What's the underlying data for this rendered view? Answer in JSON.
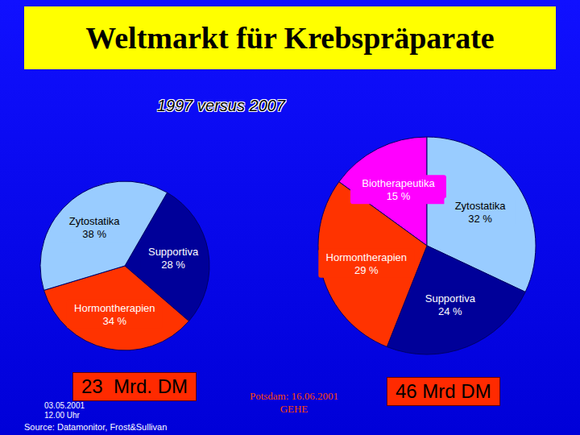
{
  "title": "Weltmarkt für Krebspräparate",
  "subtitle": "1997 versus 2007",
  "chart_data": [
    {
      "type": "pie",
      "categories": [
        "Supportiva",
        "Hormontherapien",
        "Zytostatika"
      ],
      "values": [
        28,
        34,
        38
      ],
      "value_labels": [
        "28 %",
        "34 %",
        "38 %"
      ],
      "colors": [
        "#000099",
        "#ff3300",
        "#99ccff"
      ],
      "data_labels": true,
      "annotations": [
        "23  Mrd. DM"
      ]
    },
    {
      "type": "pie",
      "categories": [
        "Biotherapeutika",
        "Zytostatika",
        "Supportiva",
        "Hormontherapien"
      ],
      "values": [
        15,
        32,
        24,
        29
      ],
      "value_labels": [
        "15 %",
        "32 %",
        "24 %",
        "29 %"
      ],
      "colors": [
        "#ff00ff",
        "#99ccff",
        "#000099",
        "#ff3300"
      ],
      "data_labels": true,
      "annotations": [
        "46 Mrd DM"
      ]
    }
  ],
  "source": "Source: Datamonitor, Frost&Sullivan",
  "footer": {
    "date": [
      "03.05.2001",
      "12.00 Uhr"
    ],
    "event": [
      "Potsdam: 16.06.2001",
      "GEHE"
    ]
  }
}
